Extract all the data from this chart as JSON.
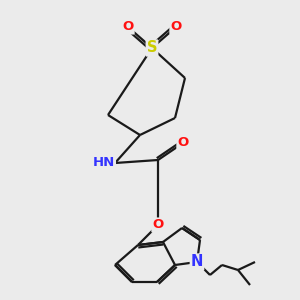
{
  "background_color": "#ebebeb",
  "bond_color": "#1a1a1a",
  "atom_colors": {
    "N": "#3333ff",
    "O": "#ff1111",
    "S": "#cccc00",
    "H": "#707070",
    "C": "#1a1a1a"
  },
  "figsize": [
    3.0,
    3.0
  ],
  "dpi": 100,
  "lw": 1.6,
  "label_fontsize": 9.5
}
